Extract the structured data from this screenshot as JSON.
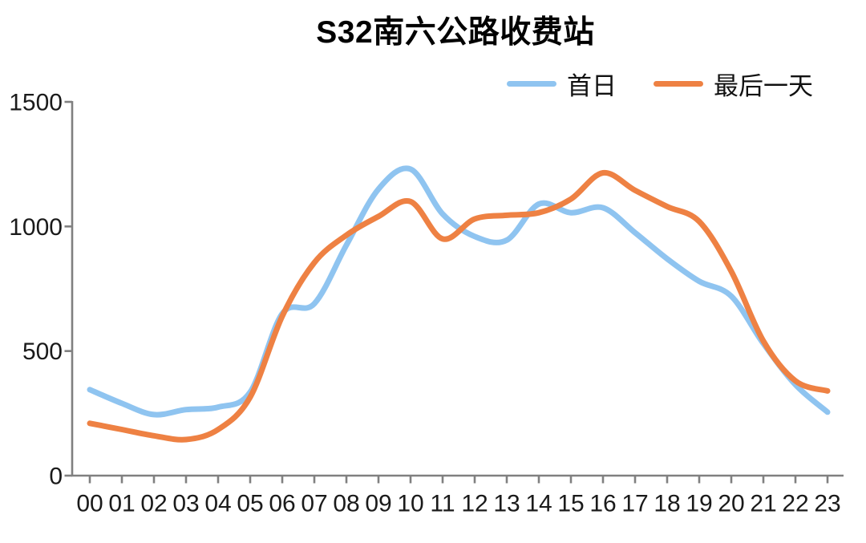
{
  "chart_data": {
    "type": "line",
    "title": "S32南六公路收费站",
    "xlabel": "",
    "ylabel": "",
    "x_categories": [
      "00",
      "01",
      "02",
      "03",
      "04",
      "05",
      "06",
      "07",
      "08",
      "09",
      "10",
      "11",
      "12",
      "13",
      "14",
      "15",
      "16",
      "17",
      "18",
      "19",
      "20",
      "21",
      "22",
      "23"
    ],
    "ylim": [
      0,
      1500
    ],
    "yticks": [
      0,
      500,
      1000,
      1500
    ],
    "grid": false,
    "legend_position": "top-right",
    "line_smoothing": true,
    "axis_color": "#808080",
    "text_color": "#1a1a1a",
    "series": [
      {
        "name": "首日",
        "color": "#8FC4F0",
        "values": [
          345,
          290,
          245,
          265,
          275,
          335,
          650,
          690,
          925,
          1150,
          1230,
          1050,
          960,
          945,
          1090,
          1055,
          1075,
          975,
          870,
          780,
          720,
          530,
          365,
          255
        ]
      },
      {
        "name": "最后一天",
        "color": "#EE8143",
        "values": [
          210,
          185,
          160,
          145,
          185,
          315,
          640,
          855,
          965,
          1040,
          1100,
          950,
          1030,
          1045,
          1055,
          1110,
          1215,
          1145,
          1080,
          1020,
          820,
          540,
          380,
          340
        ]
      }
    ]
  }
}
